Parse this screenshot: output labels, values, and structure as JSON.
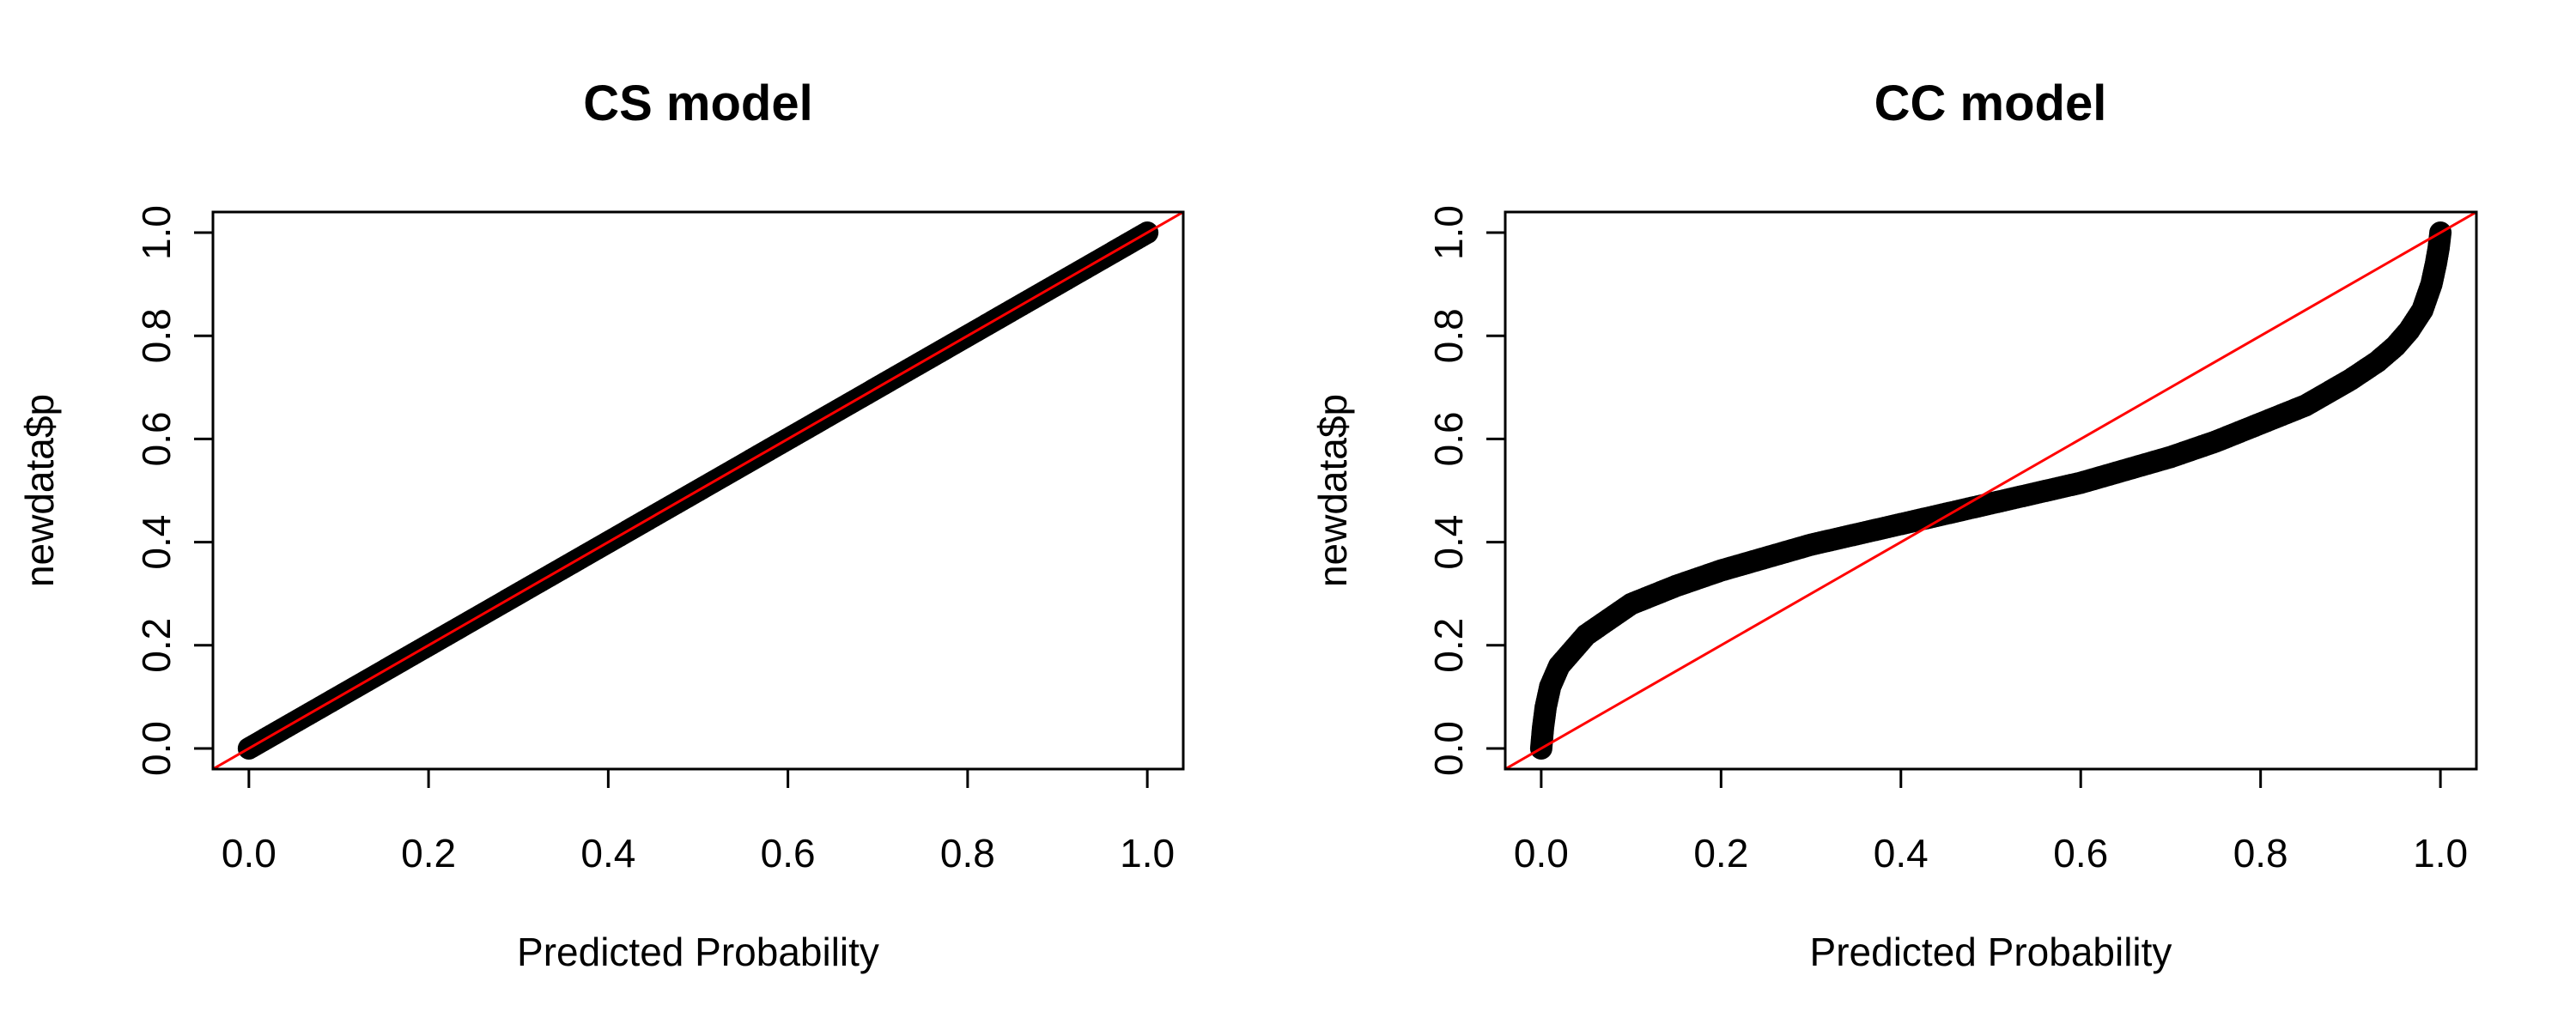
{
  "chart_data": [
    {
      "type": "scatter",
      "title": "CS model",
      "xlabel": "Predicted Probability",
      "ylabel": "newdata$p",
      "xlim": [
        -0.04,
        1.04
      ],
      "ylim": [
        -0.04,
        1.04
      ],
      "xticks": [
        "0.0",
        "0.2",
        "0.4",
        "0.6",
        "0.8",
        "1.0"
      ],
      "yticks": [
        "0.0",
        "0.2",
        "0.4",
        "0.6",
        "0.8",
        "1.0"
      ],
      "reference_line": {
        "intercept": 0,
        "slope": 1,
        "color": "#ff0000"
      },
      "series": [
        {
          "color": "#000000",
          "x": [
            0.0,
            0.05,
            0.1,
            0.15,
            0.2,
            0.25,
            0.3,
            0.35,
            0.4,
            0.45,
            0.5,
            0.55,
            0.6,
            0.65,
            0.7,
            0.75,
            0.8,
            0.85,
            0.9,
            0.95,
            1.0
          ],
          "y": [
            0.0,
            0.05,
            0.1,
            0.15,
            0.2,
            0.25,
            0.3,
            0.35,
            0.4,
            0.45,
            0.5,
            0.55,
            0.6,
            0.65,
            0.7,
            0.75,
            0.8,
            0.85,
            0.9,
            0.95,
            1.0
          ]
        }
      ]
    },
    {
      "type": "scatter",
      "title": "CC model",
      "xlabel": "Predicted Probability",
      "ylabel": "newdata$p",
      "xlim": [
        -0.04,
        1.04
      ],
      "ylim": [
        -0.04,
        1.04
      ],
      "xticks": [
        "0.0",
        "0.2",
        "0.4",
        "0.6",
        "0.8",
        "1.0"
      ],
      "yticks": [
        "0.0",
        "0.2",
        "0.4",
        "0.6",
        "0.8",
        "1.0"
      ],
      "reference_line": {
        "intercept": 0,
        "slope": 1,
        "color": "#ff0000"
      },
      "series": [
        {
          "color": "#000000",
          "x": [
            0.0,
            0.002,
            0.005,
            0.01,
            0.02,
            0.035,
            0.05,
            0.075,
            0.1,
            0.15,
            0.2,
            0.25,
            0.3,
            0.35,
            0.4,
            0.45,
            0.5,
            0.55,
            0.6,
            0.65,
            0.7,
            0.75,
            0.8,
            0.85,
            0.9,
            0.93,
            0.95,
            0.965,
            0.98,
            0.99,
            0.995,
            0.998,
            1.0
          ],
          "y": [
            0.0,
            0.04,
            0.08,
            0.12,
            0.16,
            0.19,
            0.22,
            0.25,
            0.28,
            0.315,
            0.345,
            0.37,
            0.395,
            0.415,
            0.435,
            0.455,
            0.475,
            0.495,
            0.515,
            0.54,
            0.565,
            0.595,
            0.63,
            0.665,
            0.715,
            0.75,
            0.78,
            0.81,
            0.85,
            0.9,
            0.94,
            0.97,
            1.0
          ]
        }
      ]
    }
  ]
}
